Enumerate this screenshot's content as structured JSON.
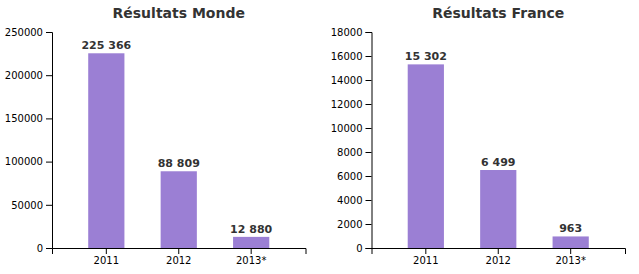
{
  "chart_data": [
    {
      "type": "bar",
      "title": "Résultats Monde",
      "categories": [
        "2011",
        "2012",
        "2013*"
      ],
      "values": [
        225366,
        88809,
        12880
      ],
      "value_labels": [
        "225 366",
        "88 809",
        "12 880"
      ],
      "data_labels": true,
      "color": "#9b7fd4",
      "ylim": [
        0,
        250000
      ],
      "yticks": [
        0,
        50000,
        100000,
        150000,
        200000,
        250000
      ],
      "grid": false
    },
    {
      "type": "bar",
      "title": "Résultats France",
      "categories": [
        "2011",
        "2012",
        "2013*"
      ],
      "values": [
        15302,
        6499,
        963
      ],
      "value_labels": [
        "15 302",
        "6 499",
        "963"
      ],
      "data_labels": true,
      "color": "#9b7fd4",
      "ylim": [
        0,
        18000
      ],
      "yticks": [
        0,
        2000,
        4000,
        6000,
        8000,
        10000,
        12000,
        14000,
        16000,
        18000
      ],
      "grid": false
    }
  ]
}
